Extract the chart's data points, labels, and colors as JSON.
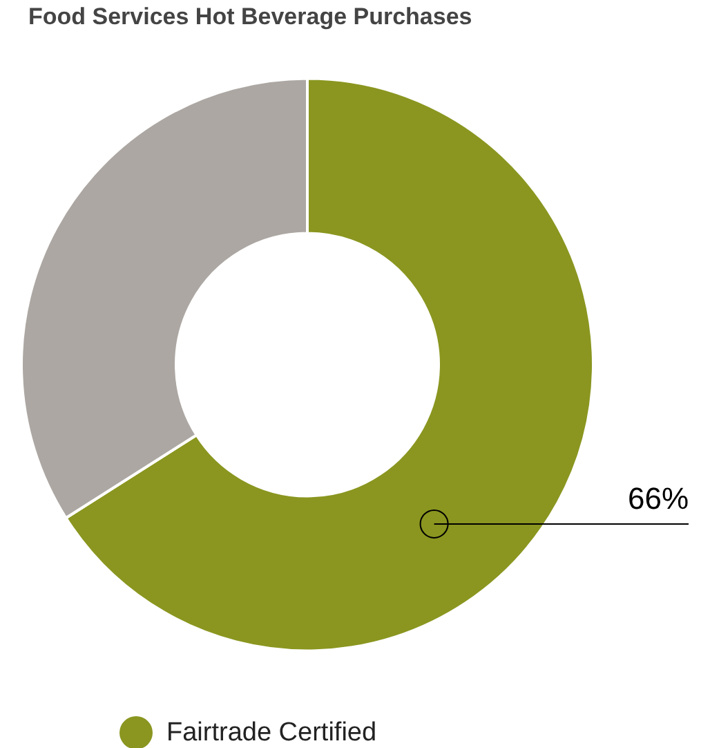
{
  "chart_data": {
    "type": "donut",
    "title": "Food Services Hot Beverage Purchases",
    "categories": [
      "Fairtrade Certified",
      null
    ],
    "values": [
      66,
      34
    ],
    "colors": [
      "#8a961f",
      "#aca7a2"
    ],
    "value_labels": [
      "66%",
      null
    ],
    "legend": "bottom left"
  }
}
